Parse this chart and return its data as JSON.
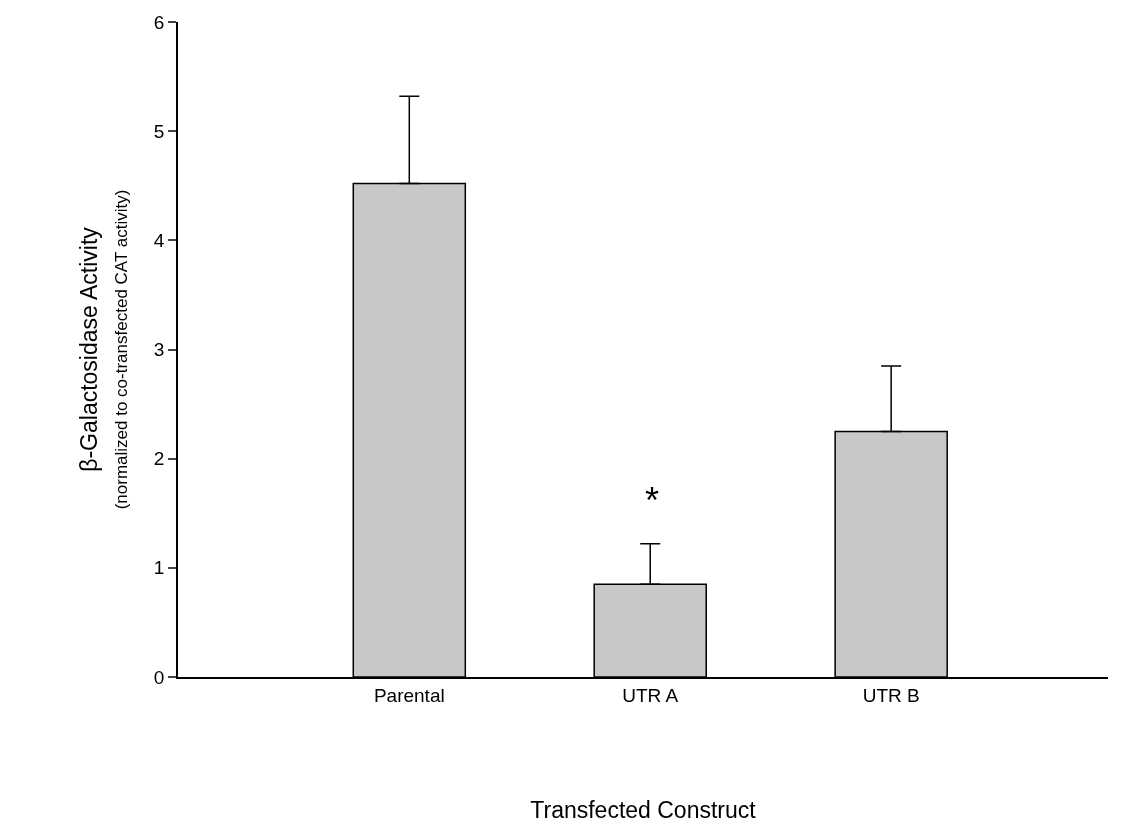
{
  "chart_data": {
    "type": "bar",
    "xlabel": "Transfected Construct",
    "ylabel": "β-Galactosidase Activity\n(normalized to co-transfected CAT activity)",
    "categories": [
      "Parental",
      "UTR A",
      "UTR B"
    ],
    "values": [
      4.52,
      0.85,
      2.25
    ],
    "errors": [
      [
        4.52,
        5.32
      ],
      [
        0.85,
        1.22
      ],
      [
        2.25,
        2.85
      ]
    ],
    "color": "#c8c8c8",
    "ylim": [
      0,
      6
    ],
    "yticks": [
      0,
      1,
      2,
      3,
      4,
      5,
      6
    ],
    "annotations": [
      "*"
    ],
    "grid": false,
    "legend": false
  }
}
